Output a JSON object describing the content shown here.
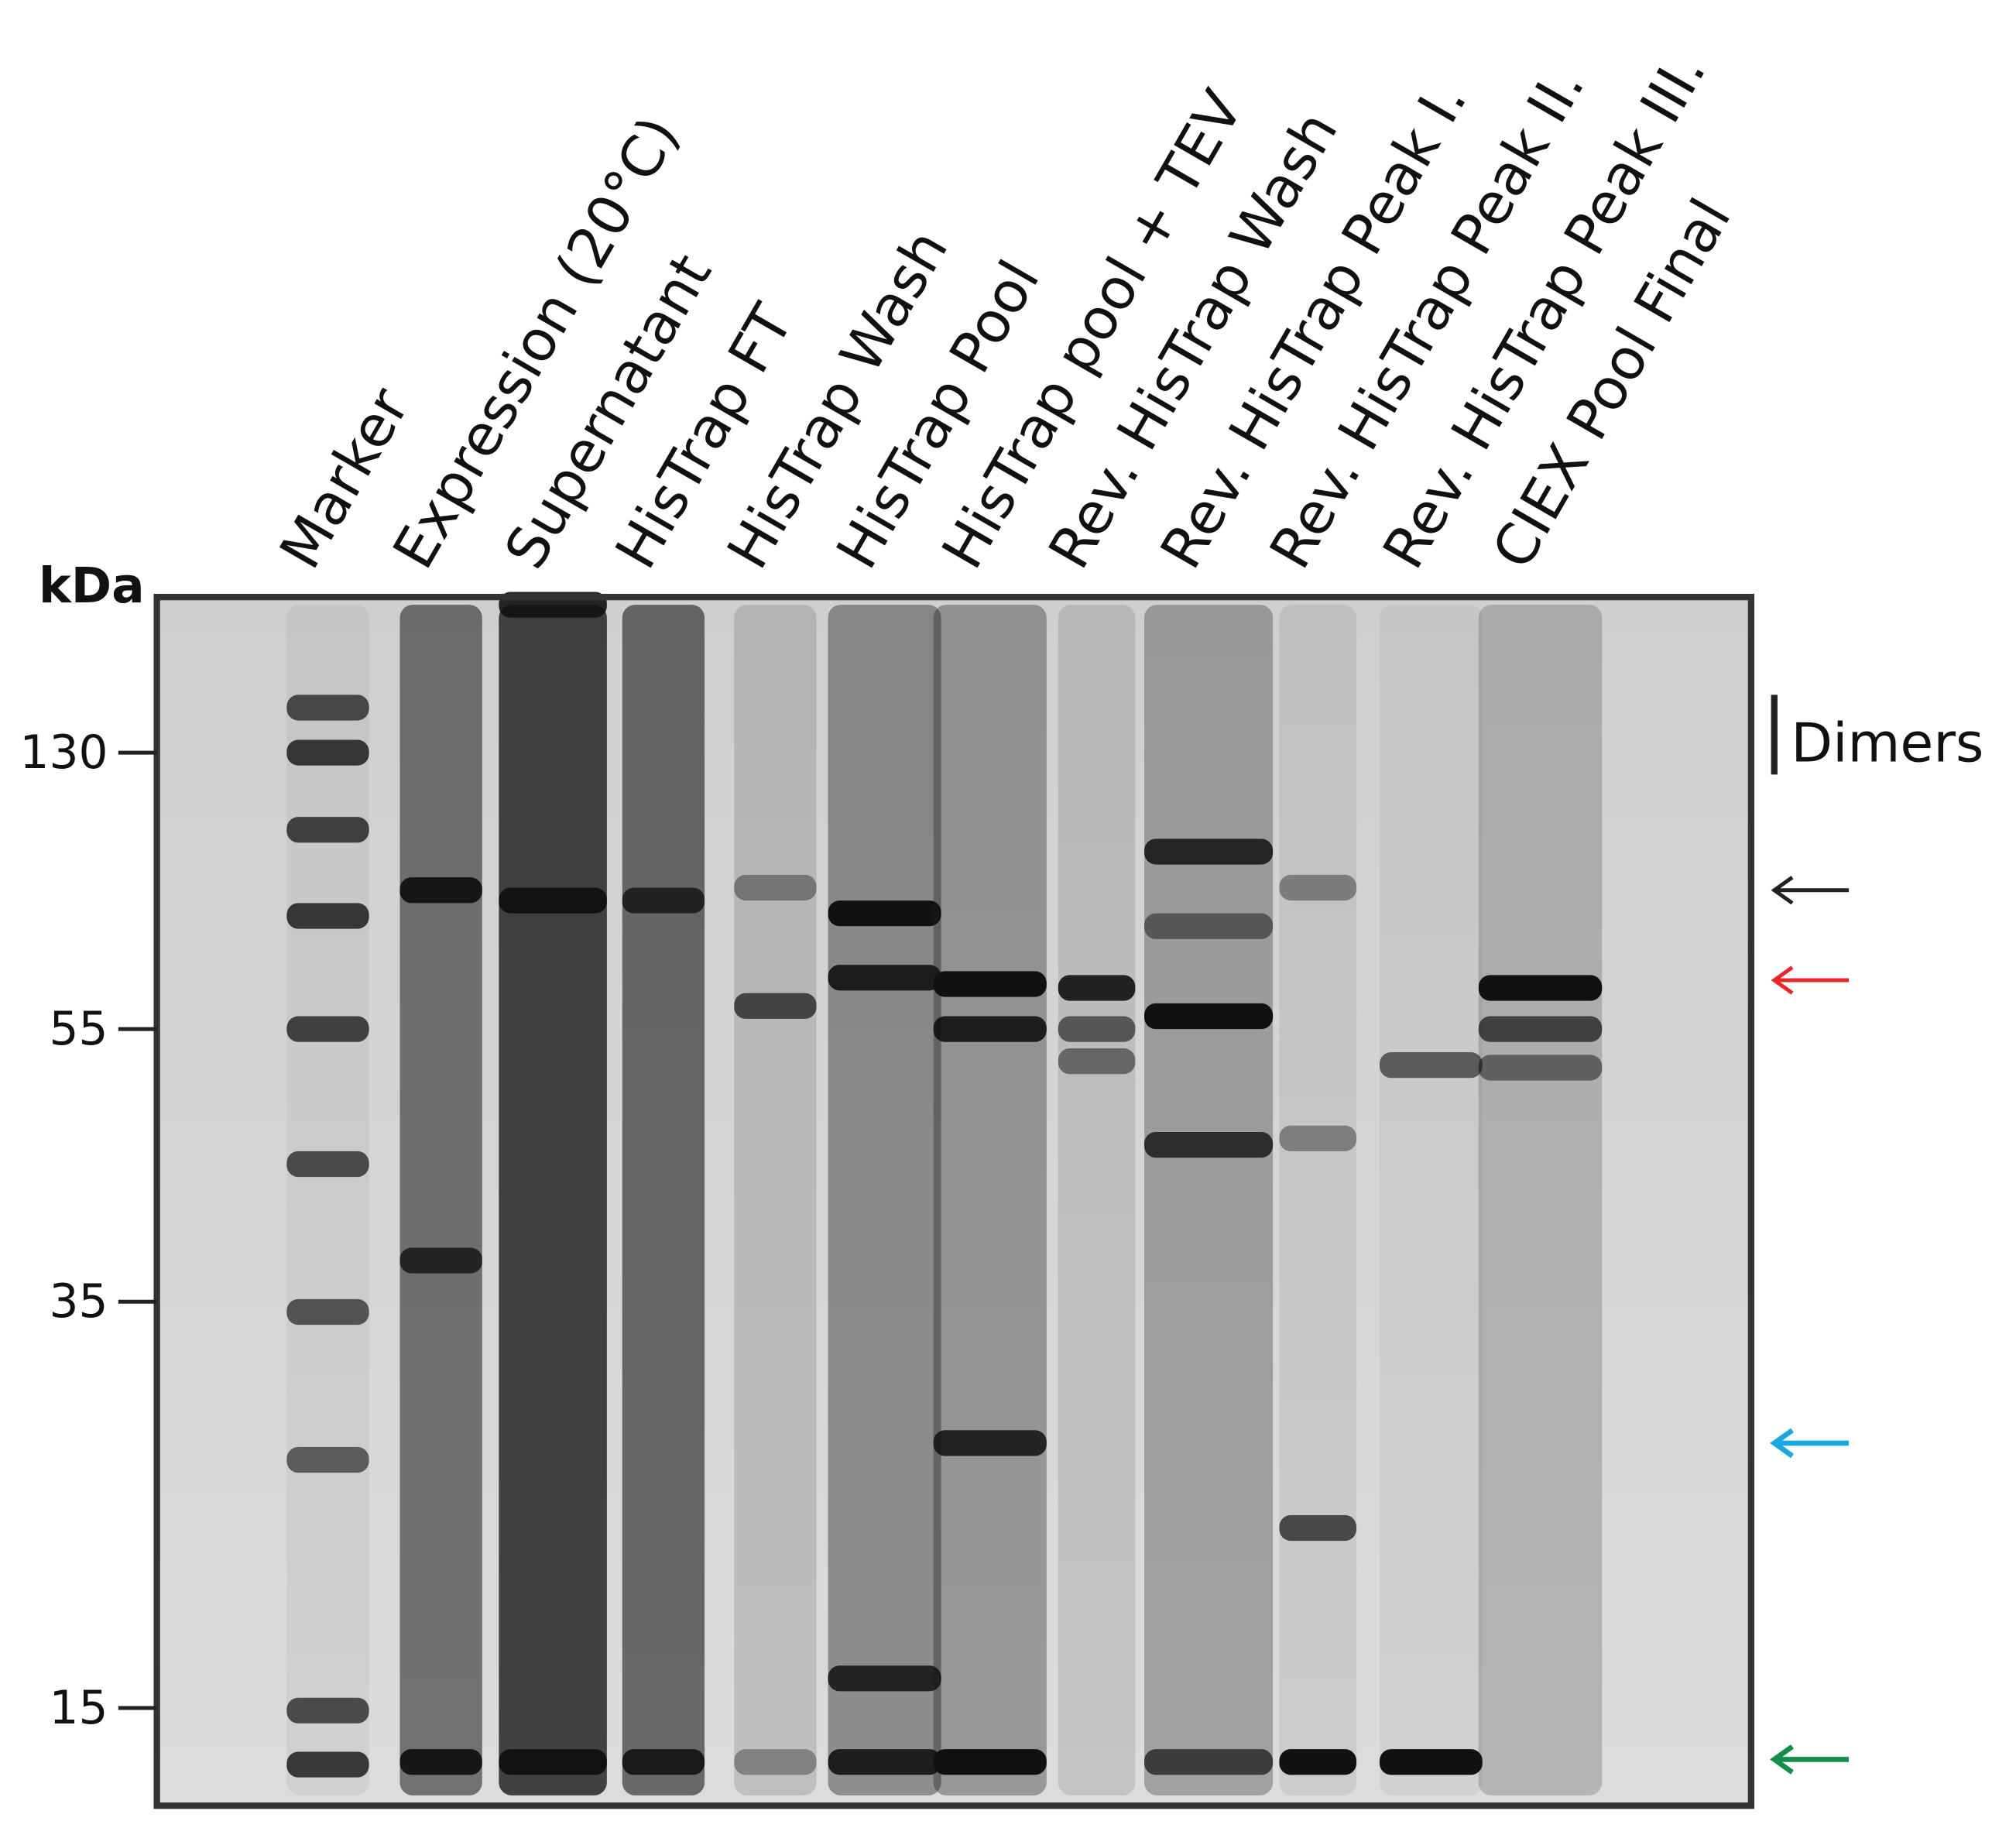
{
  "axis_label": "kDa",
  "lanes": [
    "Marker",
    "Expression (20°C)",
    "Supernatant",
    "HisTrap FT",
    "HisTrap Wash",
    "HisTrap Pool",
    "HisTrap pool + TEV",
    "Rev. HisTrap Wash",
    "Rev. HisTrap Peak I.",
    "Rev. HisTrap Peak II.",
    "Rev. HisTrap Peak III.",
    "CIEX Pool Final"
  ],
  "markers": [
    130,
    55,
    35,
    15
  ],
  "annotation": "Dimers"
}
